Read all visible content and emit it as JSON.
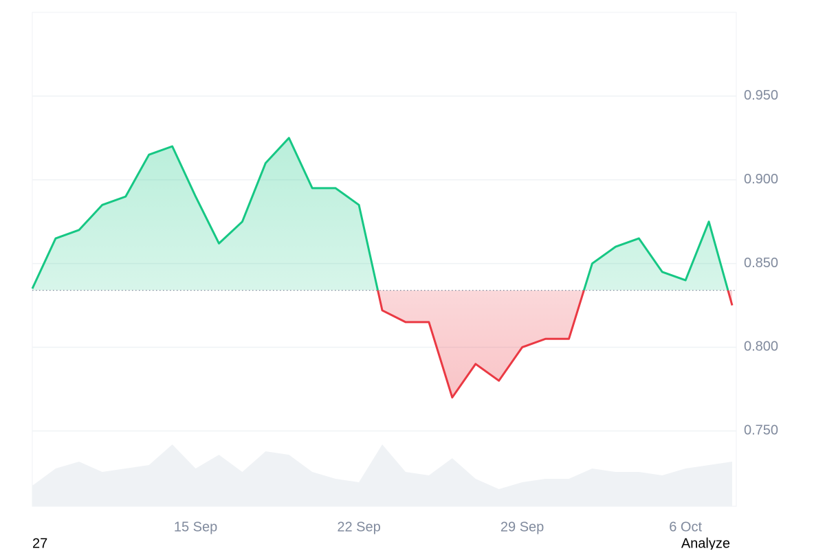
{
  "chart_data": {
    "type": "baseline",
    "x": [
      "8 Sep",
      "9 Sep",
      "10 Sep",
      "11 Sep",
      "12 Sep",
      "13 Sep",
      "14 Sep",
      "15 Sep",
      "16 Sep",
      "17 Sep",
      "18 Sep",
      "19 Sep",
      "20 Sep",
      "21 Sep",
      "22 Sep",
      "23 Sep",
      "24 Sep",
      "25 Sep",
      "26 Sep",
      "27 Sep",
      "28 Sep",
      "29 Sep",
      "30 Sep",
      "1 Oct",
      "2 Oct",
      "3 Oct",
      "4 Oct",
      "5 Oct",
      "6 Oct",
      "7 Oct",
      "8 Oct"
    ],
    "values": [
      0.835,
      0.865,
      0.87,
      0.885,
      0.89,
      0.915,
      0.92,
      0.89,
      0.862,
      0.875,
      0.91,
      0.925,
      0.895,
      0.895,
      0.885,
      0.822,
      0.815,
      0.815,
      0.77,
      0.79,
      0.78,
      0.8,
      0.805,
      0.805,
      0.85,
      0.86,
      0.865,
      0.845,
      0.84,
      0.875,
      0.825
    ],
    "volumes": [
      30,
      55,
      65,
      50,
      55,
      60,
      90,
      55,
      75,
      50,
      80,
      75,
      50,
      40,
      35,
      90,
      50,
      45,
      70,
      40,
      25,
      35,
      40,
      40,
      55,
      50,
      50,
      45,
      55,
      60,
      65
    ],
    "baseline": 0.834,
    "up_color": "#16c784",
    "down_color": "#ea3943",
    "volume_color": "#eff2f5",
    "ylim": [
      0.705,
      1.0
    ],
    "vlim": [
      0,
      110
    ],
    "yticks": [
      {
        "value": 0.75,
        "label": "0.750"
      },
      {
        "value": 0.8,
        "label": "0.800"
      },
      {
        "value": 0.85,
        "label": "0.850"
      },
      {
        "value": 0.9,
        "label": "0.900"
      },
      {
        "value": 0.95,
        "label": "0.950"
      }
    ],
    "xticks": [
      "15 Sep",
      "22 Sep",
      "29 Sep",
      "6 Oct"
    ],
    "grid": true
  },
  "footer": {
    "left": "27",
    "right": "Analyze"
  }
}
